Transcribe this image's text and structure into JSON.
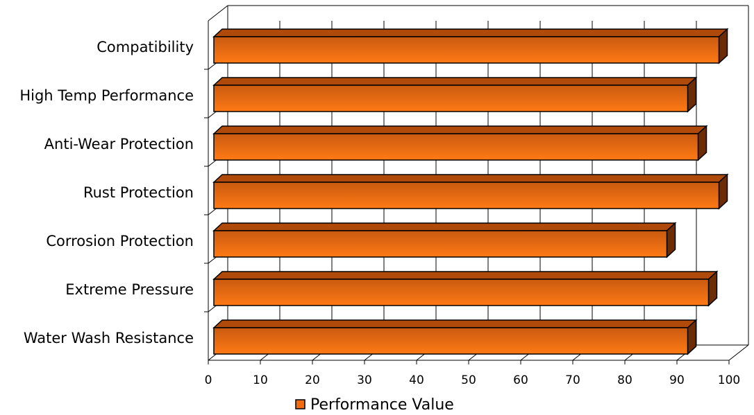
{
  "chart_data": {
    "type": "bar",
    "orientation": "horizontal",
    "style": "3d",
    "categories": [
      "Compatibility",
      "High Temp Performance",
      "Anti-Wear Protection",
      "Rust Protection",
      "Corrosion Protection",
      "Extreme Pressure",
      "Water Wash Resistance"
    ],
    "series": [
      {
        "name": "Performance Value",
        "values": [
          97,
          91,
          93,
          97,
          87,
          95,
          91
        ],
        "color": "#F26B0F"
      }
    ],
    "title": "",
    "xlabel": "",
    "ylabel": "",
    "xlim": [
      0,
      100
    ],
    "x_ticks": [
      "0",
      "10",
      "20",
      "30",
      "40",
      "50",
      "60",
      "70",
      "80",
      "90",
      "100"
    ],
    "grid": true,
    "legend_position": "bottom",
    "colors": {
      "bar_front_top": "#C95A10",
      "bar_front_bottom": "#FF7A15",
      "bar_top_face": "#B04A0A",
      "bar_side_face": "#6B2C06",
      "outline": "#000000",
      "grid": "#000000"
    }
  }
}
